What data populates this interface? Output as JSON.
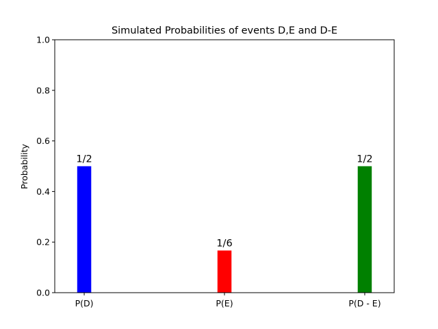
{
  "chart_data": {
    "type": "bar",
    "title": "Simulated Probabilities of events D,E and D-E",
    "xlabel": "",
    "ylabel": "Probability",
    "categories": [
      "P(D)",
      "P(E)",
      "P(D - E)"
    ],
    "values": [
      0.5,
      0.1667,
      0.5
    ],
    "data_labels": [
      "1/2",
      "1/6",
      "1/2"
    ],
    "colors": [
      "#0000ff",
      "#ff0000",
      "#008000"
    ],
    "ylim": [
      0,
      1.0
    ],
    "yticks": [
      0.0,
      0.2,
      0.4,
      0.6,
      0.8,
      1.0
    ],
    "ytick_labels": [
      "0.0",
      "0.2",
      "0.4",
      "0.6",
      "0.8",
      "1.0"
    ],
    "grid": false,
    "legend": "none"
  }
}
